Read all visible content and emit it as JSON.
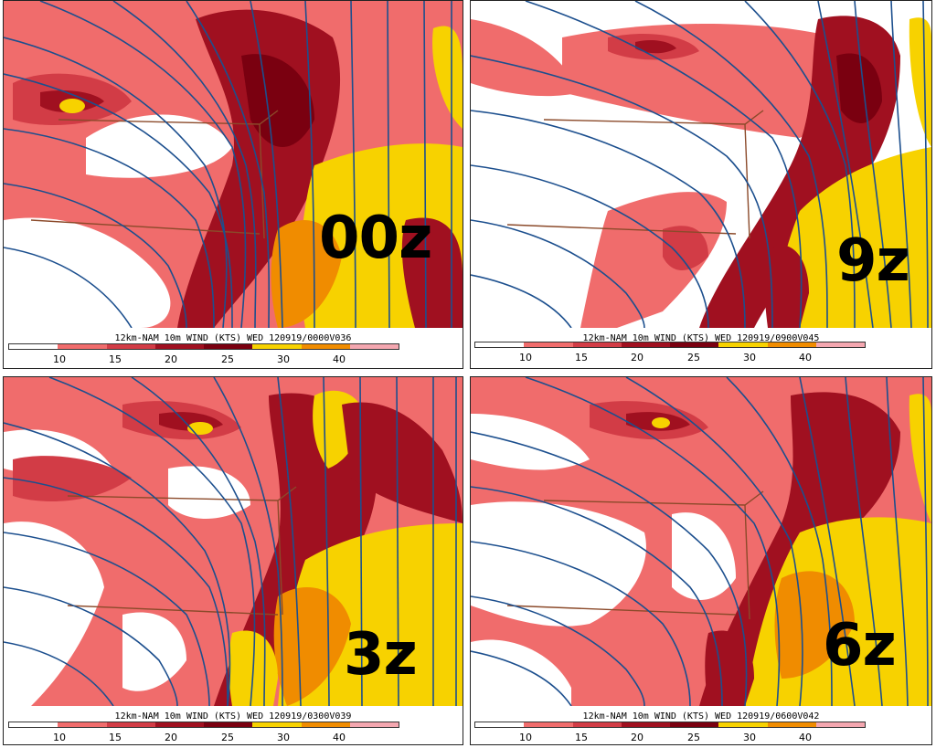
{
  "legend": {
    "colors": [
      "#ffffff",
      "#f06c6c",
      "#d23c46",
      "#a01020",
      "#7a0010",
      "#f7d200",
      "#f08c00",
      "#f4a7b0"
    ],
    "ticks": [
      "10",
      "15",
      "20",
      "25",
      "30",
      "40"
    ]
  },
  "panels": [
    {
      "id": "00z",
      "label": "00z",
      "caption": "12km-NAM 10m WIND (KTS) WED 120919/0000V036"
    },
    {
      "id": "9z",
      "label": "9z",
      "caption": "12km-NAM 10m WIND (KTS) WED 120919/0900V045"
    },
    {
      "id": "3z",
      "label": "3z",
      "caption": "12km-NAM 10m WIND (KTS) WED 120919/0300V039"
    },
    {
      "id": "6z",
      "label": "6z",
      "caption": "12km-NAM 10m WIND (KTS) WED 120919/0600V042"
    }
  ],
  "colors": {
    "calm": "#ffffff",
    "light_red": "#f06c6c",
    "red": "#d23c46",
    "dark_red": "#a01020",
    "yellow": "#f7d200",
    "orange": "#f08c00",
    "streamline": "#1c4f8e",
    "state_border": "#8b4a2a"
  }
}
